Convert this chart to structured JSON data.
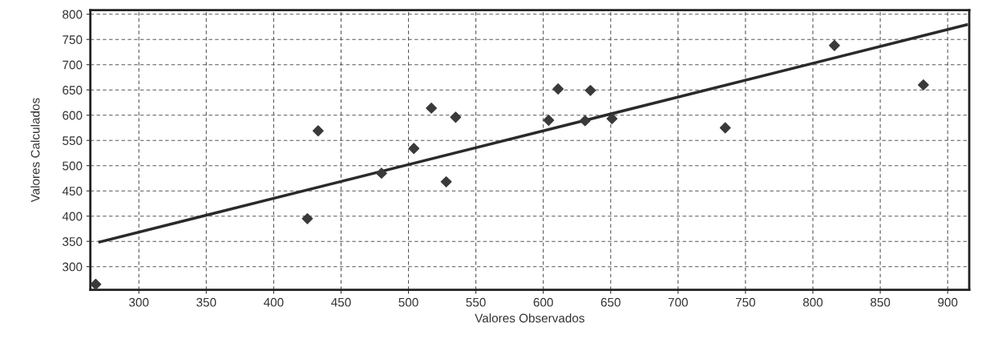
{
  "chart_data": {
    "type": "scatter",
    "xlabel": "Valores Observados",
    "ylabel": "Valores Calculados",
    "series": [
      {
        "color": "#3a3a3a",
        "marker": "diamond",
        "x": [
          268,
          425,
          433,
          480,
          504,
          517,
          528,
          535,
          604,
          611,
          631,
          635,
          651,
          735,
          816,
          882
        ],
        "values": [
          265,
          395,
          569,
          485,
          534,
          614,
          468,
          596,
          590,
          652,
          589,
          649,
          593,
          575,
          738,
          660
        ]
      },
      {
        "type": "line",
        "color": "#2a2a2a",
        "line_style": "solid",
        "x": [
          271,
          914
        ],
        "values": [
          349,
          779
        ]
      }
    ],
    "xlim": [
      264,
      916
    ],
    "ylim": [
      254,
      808
    ],
    "xticks": [
      300,
      350,
      400,
      450,
      500,
      550,
      600,
      650,
      700,
      750,
      800,
      850,
      900
    ],
    "yticks": [
      300,
      350,
      400,
      450,
      500,
      550,
      600,
      650,
      700,
      750,
      800
    ],
    "grid": true
  }
}
